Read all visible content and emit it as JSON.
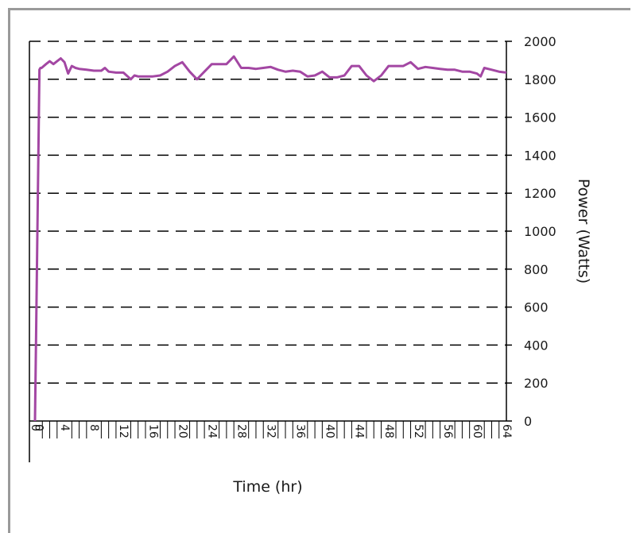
{
  "chart_data": {
    "type": "line",
    "title": "",
    "xlabel": "Time (hr)",
    "ylabel": "Power (Watts)",
    "xlim": [
      0,
      64
    ],
    "ylim": [
      0,
      2000
    ],
    "y_ticks": [
      0,
      200,
      400,
      600,
      800,
      1000,
      1200,
      1400,
      1600,
      1800,
      2000
    ],
    "x_tick_labels": [
      "0",
      "0",
      "4",
      "8",
      "12",
      "16",
      "20",
      "24",
      "28",
      "32",
      "36",
      "40",
      "44",
      "48",
      "52",
      "56",
      "60",
      "64"
    ],
    "x_tick_values": [
      0,
      0.5,
      4,
      8,
      12,
      16,
      20,
      24,
      28,
      32,
      36,
      40,
      44,
      48,
      52,
      56,
      60,
      64
    ],
    "grid": "horizontal-dashed",
    "y_axis_side": "right",
    "series": [
      {
        "color": "#a347a3",
        "x": [
          0,
          0.15,
          0.3,
          0.45,
          0.6,
          0.75,
          0.9,
          1.5,
          2,
          2.5,
          3,
          3.5,
          4,
          4.5,
          5,
          5.5,
          6,
          7,
          8,
          9,
          9.5,
          10,
          11,
          12,
          13,
          13.5,
          14,
          15,
          16,
          17,
          18,
          19,
          20,
          21,
          22,
          23,
          24,
          25,
          26,
          27,
          28,
          29,
          30,
          31,
          32,
          33,
          34,
          35,
          36,
          37,
          38,
          39,
          40,
          41,
          42,
          43,
          44,
          45,
          46,
          47,
          48,
          49,
          50,
          51,
          52,
          53,
          54,
          55,
          56,
          57,
          58,
          59,
          60,
          60.5,
          61,
          62,
          63,
          64
        ],
        "y": [
          0,
          450,
          920,
          1380,
          1850,
          1860,
          1860,
          1880,
          1895,
          1880,
          1895,
          1910,
          1890,
          1830,
          1870,
          1860,
          1855,
          1850,
          1845,
          1845,
          1860,
          1840,
          1835,
          1835,
          1800,
          1820,
          1815,
          1815,
          1815,
          1820,
          1840,
          1870,
          1890,
          1840,
          1800,
          1840,
          1880,
          1880,
          1880,
          1920,
          1860,
          1860,
          1855,
          1860,
          1865,
          1850,
          1840,
          1845,
          1840,
          1815,
          1820,
          1840,
          1810,
          1810,
          1820,
          1870,
          1870,
          1820,
          1790,
          1820,
          1870,
          1870,
          1870,
          1890,
          1855,
          1865,
          1860,
          1855,
          1850,
          1850,
          1840,
          1840,
          1830,
          1815,
          1860,
          1850,
          1840,
          1835
        ]
      }
    ]
  }
}
